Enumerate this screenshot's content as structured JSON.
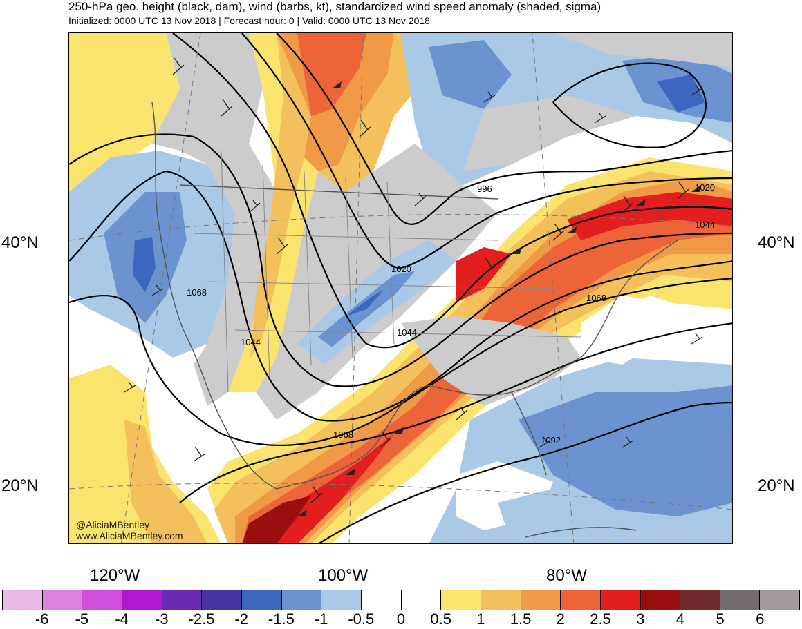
{
  "header": {
    "title": "250-hPa geo. height (black, dam), wind (barbs, kt), standardized wind speed anomaly (shaded, sigma)",
    "subtitle": "Initialized: 0000 UTC 13 Nov 2018 | Forecast hour: 0 | Valid: 0000 UTC 13 Nov 2018"
  },
  "axes": {
    "lat_left": [
      "40°N",
      "20°N"
    ],
    "lat_right": [
      "40°N",
      "20°N"
    ],
    "lon": [
      "120°W",
      "100°W",
      "80°W"
    ]
  },
  "contour_labels": [
    "996",
    "1020",
    "1020",
    "1044",
    "1044",
    "1044",
    "1068",
    "1068",
    "1068",
    "1092"
  ],
  "credit": {
    "handle": "@AliciaMBentley",
    "site": "www.AliciaMBentley.com"
  },
  "colorbar": {
    "labels": [
      "-6",
      "-5",
      "-4",
      "-3",
      "-2.5",
      "-2",
      "-1.5",
      "-1",
      "-0.5",
      "0",
      "0.5",
      "1",
      "1.5",
      "2",
      "2.5",
      "3",
      "4",
      "5",
      "6"
    ],
    "colors": [
      "#e9b8e6",
      "#e17fe0",
      "#d04ddd",
      "#b018d0",
      "#6a2ab3",
      "#4136a3",
      "#3d67bf",
      "#6a93cf",
      "#aac9e7",
      "#ffffff",
      "#ffffff",
      "#fbe46e",
      "#f4c05c",
      "#f09a48",
      "#ec6437",
      "#e31e1e",
      "#9a0e0e",
      "#6e2b2b",
      "#756b6b",
      "#a49a9a"
    ]
  },
  "colors": {
    "land_anomaly_gray": "#cccccc",
    "contour": "#000000"
  }
}
